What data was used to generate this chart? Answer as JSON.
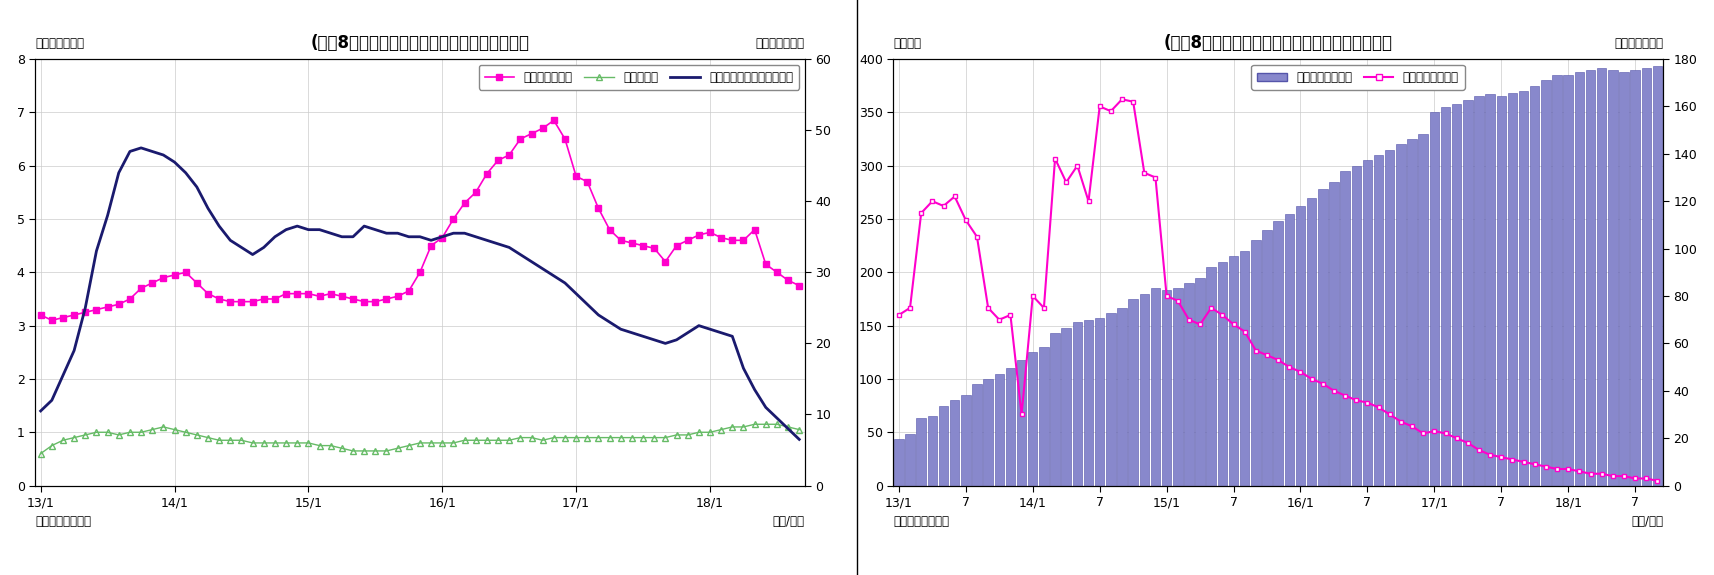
{
  "fig5": {
    "title": "(図袆8５）　マネタリーベース伸び率（平残）",
    "left_ylabel": "（前年比、％）",
    "right_ylabel": "（前年比、％）",
    "source": "（資料）日本銀行",
    "date_label": "（年/月）",
    "ylim_left": [
      0,
      8
    ],
    "ylim_right": [
      0,
      60
    ],
    "yticks_left": [
      0,
      1,
      2,
      3,
      4,
      5,
      6,
      7,
      8
    ],
    "yticks_right": [
      0,
      10,
      20,
      30,
      40,
      50,
      60
    ],
    "xtick_labels": [
      "13/1",
      "14/1",
      "15/1",
      "16/1",
      "17/1",
      "18/1"
    ],
    "legend_labels": [
      "日銀券発行残高",
      "貨幣流通高",
      "マネタリーベース（右軸）"
    ]
  },
  "fig6": {
    "title": "(図袆8６）　日銀当座預金残高（平残）と伸び率",
    "left_ylabel": "（兆円）",
    "right_ylabel": "（前年比、％）",
    "source": "（資料）日本銀行",
    "date_label": "（年/月）",
    "ylim_left": [
      0,
      400
    ],
    "ylim_right": [
      0,
      180
    ],
    "yticks_left": [
      0,
      50,
      100,
      150,
      200,
      250,
      300,
      350,
      400
    ],
    "yticks_right": [
      0,
      20,
      40,
      60,
      80,
      100,
      120,
      140,
      160,
      180
    ],
    "xtick_labels": [
      "13/1",
      "7",
      "14/1",
      "7",
      "15/1",
      "7",
      "16/1",
      "7",
      "17/1",
      "7",
      "18/1",
      "7"
    ],
    "legend_labels": [
      "日銀当座預金残高",
      "同伸び率（右軸）"
    ],
    "bar_color": "#8888CC",
    "bar_edge_color": "#5555AA",
    "line_color": "#FF00CC"
  }
}
